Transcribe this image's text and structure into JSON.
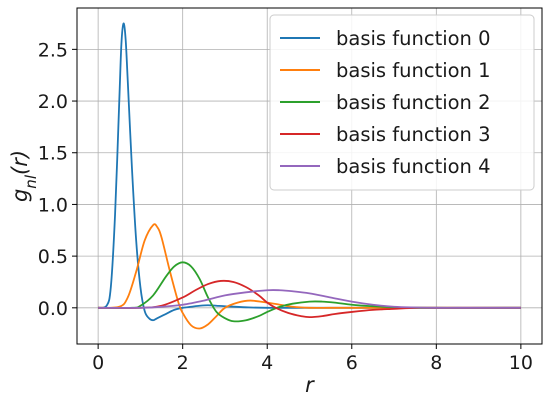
{
  "chart_data": {
    "type": "line",
    "xlabel": "r",
    "ylabel": "g_nl(r)",
    "xlim": [
      -0.5,
      10.5
    ],
    "ylim": [
      -0.35,
      2.9
    ],
    "xticks": [
      0,
      2,
      4,
      6,
      8,
      10
    ],
    "xtick_labels": [
      "0",
      "2",
      "4",
      "6",
      "8",
      "10"
    ],
    "yticks": [
      0.0,
      0.5,
      1.0,
      1.5,
      2.0,
      2.5
    ],
    "ytick_labels": [
      "0.0",
      "0.5",
      "1.0",
      "1.5",
      "2.0",
      "2.5"
    ],
    "grid": true,
    "legend_position": "top-right",
    "series": [
      {
        "name": "basis function 0",
        "color": "#1f77b4",
        "x": [
          0,
          0.2,
          0.3,
          0.4,
          0.5,
          0.55,
          0.6,
          0.65,
          0.7,
          0.8,
          0.9,
          1.0,
          1.1,
          1.2,
          1.3,
          1.4,
          1.6,
          1.8,
          2.0,
          2.2,
          2.4,
          2.6,
          2.8,
          3.0,
          3.5,
          4.0,
          5.0,
          10.0
        ],
        "y": [
          0,
          0.02,
          0.2,
          0.9,
          2.0,
          2.55,
          2.75,
          2.6,
          2.2,
          1.35,
          0.65,
          0.2,
          -0.03,
          -0.1,
          -0.12,
          -0.1,
          -0.06,
          -0.02,
          0.0,
          0.01,
          0.02,
          0.025,
          0.02,
          0.015,
          0.005,
          0.0,
          0.0,
          0.0
        ]
      },
      {
        "name": "basis function 1",
        "color": "#ff7f0e",
        "x": [
          0,
          0.5,
          0.7,
          0.9,
          1.1,
          1.3,
          1.4,
          1.5,
          1.7,
          1.9,
          2.0,
          2.2,
          2.4,
          2.6,
          2.8,
          3.0,
          3.3,
          3.6,
          4.0,
          4.3,
          4.6,
          5.0,
          5.5,
          6.0,
          10.0
        ],
        "y": [
          0,
          0.01,
          0.1,
          0.35,
          0.65,
          0.8,
          0.78,
          0.68,
          0.35,
          0.05,
          -0.05,
          -0.17,
          -0.2,
          -0.16,
          -0.08,
          0.0,
          0.05,
          0.07,
          0.05,
          0.03,
          0.01,
          0.0,
          0.0,
          0.0,
          0.0
        ]
      },
      {
        "name": "basis function 2",
        "color": "#2ca02c",
        "x": [
          0,
          0.8,
          1.0,
          1.3,
          1.6,
          1.8,
          2.0,
          2.2,
          2.4,
          2.6,
          2.8,
          3.0,
          3.2,
          3.5,
          3.8,
          4.0,
          4.3,
          4.6,
          5.0,
          5.3,
          5.6,
          6.0,
          6.5,
          7.0,
          7.5,
          10.0
        ],
        "y": [
          0,
          0.0,
          0.02,
          0.12,
          0.3,
          0.4,
          0.44,
          0.4,
          0.28,
          0.1,
          -0.04,
          -0.1,
          -0.13,
          -0.12,
          -0.08,
          -0.04,
          0.01,
          0.04,
          0.06,
          0.06,
          0.05,
          0.03,
          0.015,
          0.005,
          0.0,
          0.0
        ]
      },
      {
        "name": "basis function 3",
        "color": "#d62728",
        "x": [
          0,
          1.0,
          1.5,
          2.0,
          2.3,
          2.6,
          2.9,
          3.2,
          3.5,
          3.8,
          4.0,
          4.2,
          4.5,
          4.8,
          5.0,
          5.3,
          5.6,
          6.0,
          6.5,
          7.0,
          7.5,
          8.0,
          10.0
        ],
        "y": [
          0,
          0.0,
          0.02,
          0.1,
          0.17,
          0.23,
          0.26,
          0.25,
          0.2,
          0.12,
          0.05,
          0.0,
          -0.05,
          -0.08,
          -0.09,
          -0.08,
          -0.06,
          -0.04,
          -0.02,
          -0.01,
          0.0,
          0.0,
          0.0
        ]
      },
      {
        "name": "basis function 4",
        "color": "#9467bd",
        "x": [
          0,
          1.0,
          1.5,
          2.0,
          2.5,
          3.0,
          3.5,
          4.0,
          4.3,
          4.6,
          5.0,
          5.5,
          6.0,
          6.5,
          7.0,
          7.5,
          8.0,
          8.5,
          9.0,
          10.0
        ],
        "y": [
          0,
          0.0,
          0.01,
          0.03,
          0.07,
          0.12,
          0.15,
          0.17,
          0.17,
          0.16,
          0.14,
          0.1,
          0.06,
          0.03,
          0.01,
          0.003,
          0.0,
          0.0,
          0.0,
          0.0
        ]
      }
    ]
  }
}
